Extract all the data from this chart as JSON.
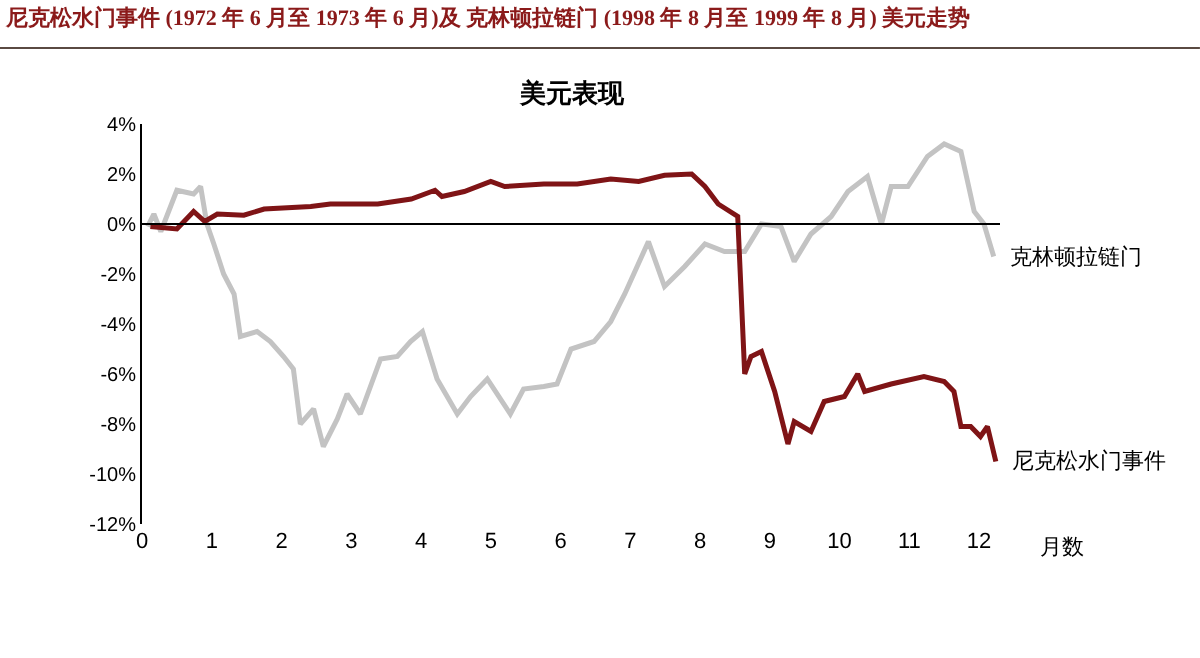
{
  "chart_data": {
    "type": "line",
    "title": "尼克松水门事件 (1972 年 6 月至 1973 年 6 月)及 克林顿拉链门 (1998 年 8 月至 1999 年 8 月) 美元走势",
    "subtitle": "美元表现",
    "xlabel": "月数",
    "xlim": [
      0,
      12.3
    ],
    "xticks": [
      0,
      1,
      2,
      3,
      4,
      5,
      6,
      7,
      8,
      9,
      10,
      11,
      12
    ],
    "ylim": [
      -12,
      4
    ],
    "yticks": [
      {
        "value": 4,
        "label": "4%"
      },
      {
        "value": 2,
        "label": "2%"
      },
      {
        "value": 0,
        "label": "0%"
      },
      {
        "value": -2,
        "label": "-2%"
      },
      {
        "value": -4,
        "label": "-4%"
      },
      {
        "value": -6,
        "label": "-6%"
      },
      {
        "value": -8,
        "label": "-8%"
      },
      {
        "value": -10,
        "label": "-10%"
      },
      {
        "value": -12,
        "label": "-12%"
      }
    ],
    "legend": false,
    "marker": "none",
    "line_style": "solid",
    "ref_lines": [
      {
        "axis": "y",
        "value": 0,
        "color": "#000000"
      }
    ],
    "series": [
      {
        "name": "克林顿拉链门",
        "color": "#c3c3c3",
        "x": [
          0.08,
          0.17,
          0.27,
          0.5,
          0.74,
          0.84,
          0.93,
          1.03,
          1.17,
          1.32,
          1.41,
          1.65,
          1.84,
          2.03,
          2.17,
          2.27,
          2.46,
          2.6,
          2.8,
          2.94,
          3.13,
          3.42,
          3.66,
          3.85,
          4.02,
          4.23,
          4.52,
          4.71,
          4.95,
          5.28,
          5.47,
          5.76,
          5.95,
          6.15,
          6.48,
          6.72,
          6.92,
          7.26,
          7.49,
          7.78,
          8.07,
          8.35,
          8.64,
          8.88,
          9.16,
          9.35,
          9.59,
          9.88,
          10.12,
          10.4,
          10.6,
          10.74,
          10.98,
          11.26,
          11.5,
          11.74,
          11.93,
          12.07,
          12.21
        ],
        "values": [
          -0.1,
          0.4,
          -0.3,
          1.35,
          1.2,
          1.5,
          0,
          -0.8,
          -2.0,
          -2.8,
          -4.5,
          -4.3,
          -4.7,
          -5.3,
          -5.8,
          -8.0,
          -7.4,
          -8.9,
          -7.8,
          -6.8,
          -7.6,
          -5.4,
          -5.3,
          -4.7,
          -4.3,
          -6.2,
          -7.6,
          -6.9,
          -6.2,
          -7.6,
          -6.6,
          -6.5,
          -6.4,
          -5.0,
          -4.7,
          -3.9,
          -2.8,
          -0.7,
          -2.5,
          -1.7,
          -0.8,
          -1.1,
          -1.1,
          0,
          -0.1,
          -1.5,
          -0.4,
          0.3,
          1.3,
          1.9,
          0,
          1.5,
          1.5,
          2.7,
          3.2,
          2.9,
          0.5,
          0,
          -1.3
        ]
      },
      {
        "name": "尼克松水门事件",
        "color": "#7f1416",
        "x": [
          0.12,
          0.5,
          0.74,
          0.9,
          1.08,
          1.46,
          1.75,
          2.42,
          2.7,
          3.38,
          3.86,
          4.2,
          4.3,
          4.62,
          5.0,
          5.2,
          5.76,
          6.24,
          6.72,
          7.12,
          7.49,
          7.88,
          8.07,
          8.26,
          8.54,
          8.64,
          8.73,
          8.88,
          9.07,
          9.26,
          9.35,
          9.59,
          9.78,
          10.07,
          10.26,
          10.36,
          10.74,
          11.21,
          11.5,
          11.64,
          11.74,
          11.88,
          12.02,
          12.12,
          12.24
        ],
        "values": [
          -0.1,
          -0.2,
          0.5,
          0.1,
          0.4,
          0.35,
          0.6,
          0.7,
          0.8,
          0.8,
          1.0,
          1.35,
          1.1,
          1.3,
          1.7,
          1.5,
          1.6,
          1.6,
          1.8,
          1.7,
          1.95,
          2.0,
          1.5,
          0.8,
          0.3,
          -6.0,
          -5.3,
          -5.1,
          -6.7,
          -8.8,
          -7.9,
          -8.3,
          -7.1,
          -6.9,
          -6.0,
          -6.7,
          -6.4,
          -6.1,
          -6.3,
          -6.7,
          -8.1,
          -8.1,
          -8.5,
          -8.1,
          -9.5
        ]
      }
    ]
  }
}
